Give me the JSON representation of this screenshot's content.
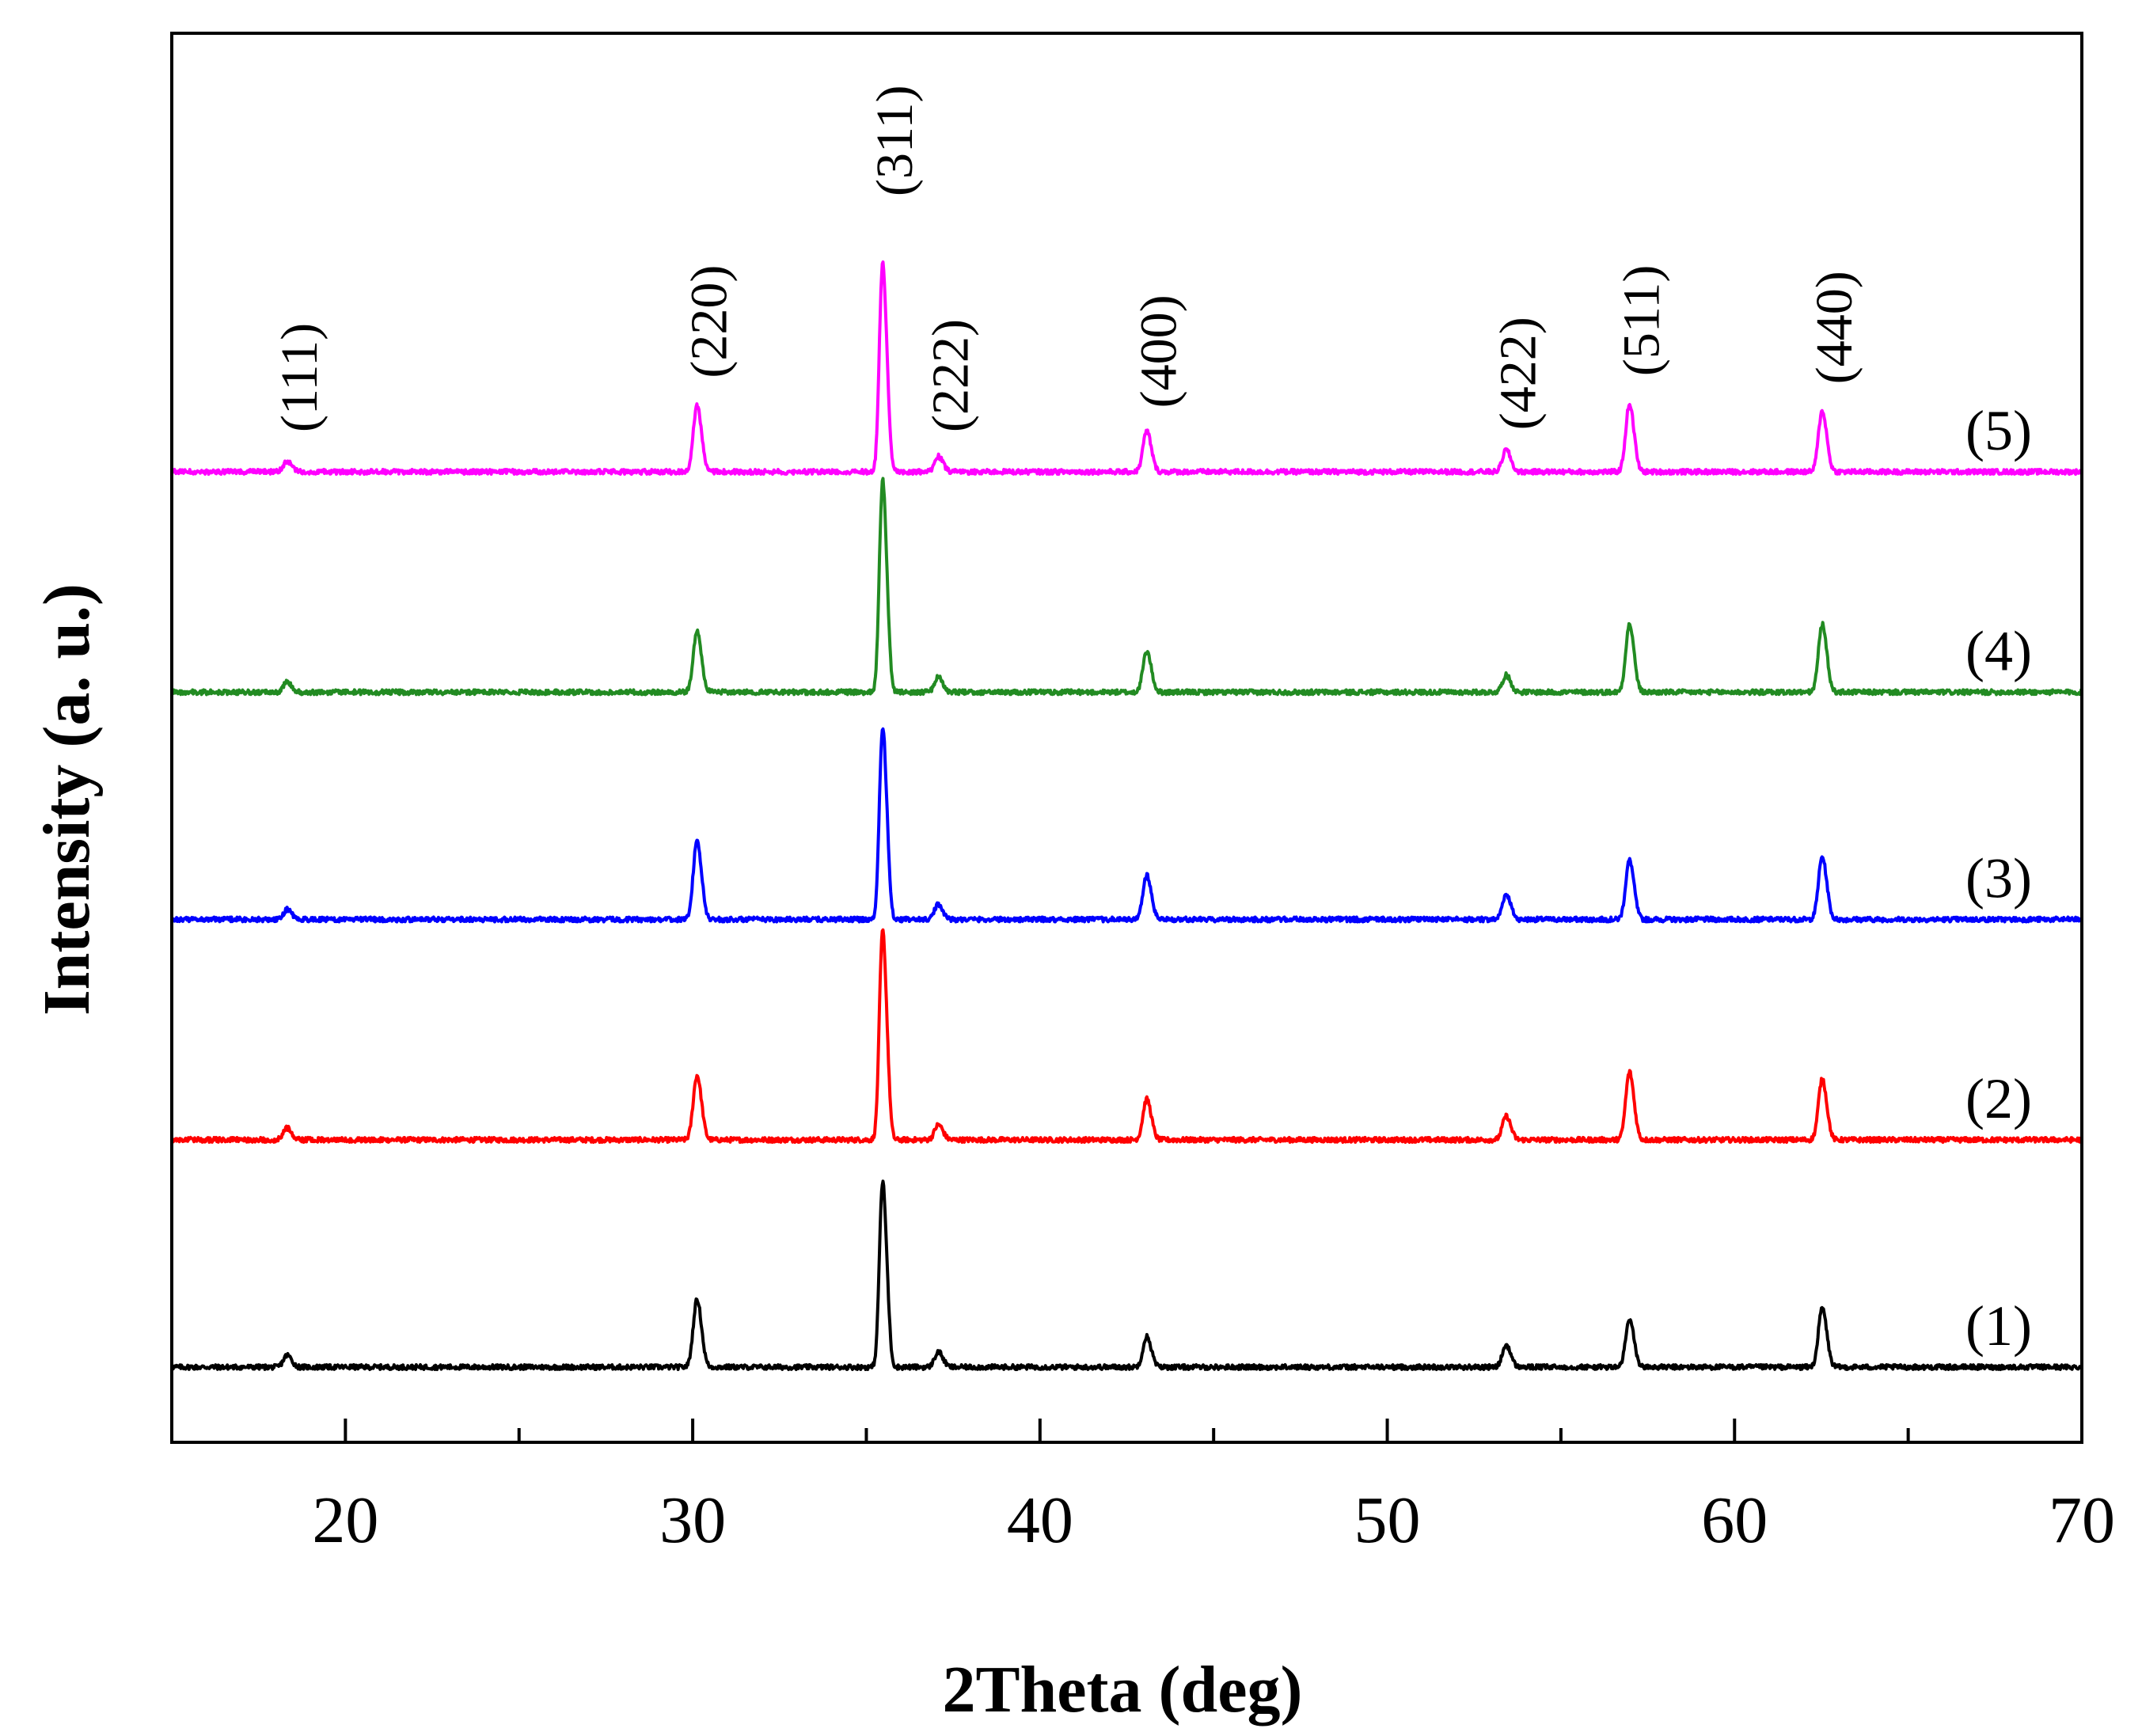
{
  "chart_data": {
    "type": "line",
    "title": "",
    "xlabel": "2Theta (deg)",
    "ylabel": "Intensity (a. u.)",
    "xlim": [
      15,
      70
    ],
    "xticks": [
      20,
      30,
      40,
      50,
      60,
      70
    ],
    "y_units": "arbitrary (stacked, offset series)",
    "grid": false,
    "peak_positions_deg": [
      18.3,
      30.1,
      35.45,
      37.05,
      43.05,
      53.4,
      56.95,
      62.5
    ],
    "peak_annotations": [
      {
        "label": "(111)",
        "x": 18.3
      },
      {
        "label": "(220)",
        "x": 30.1
      },
      {
        "label": "(311)",
        "x": 35.45
      },
      {
        "label": "(222)",
        "x": 37.05
      },
      {
        "label": "(400)",
        "x": 43.05
      },
      {
        "label": "(422)",
        "x": 53.4
      },
      {
        "label": "(511)",
        "x": 56.95
      },
      {
        "label": "(440)",
        "x": 62.5
      }
    ],
    "series": [
      {
        "name": "(1)",
        "color": "#000000",
        "baseline": 0.0,
        "peak_heights": [
          0.7,
          4.0,
          11.5,
          0.9,
          1.8,
          1.3,
          2.8,
          3.5
        ]
      },
      {
        "name": "(2)",
        "color": "#ff0000",
        "baseline": 16.5,
        "peak_heights": [
          0.7,
          3.8,
          13.0,
          0.9,
          2.4,
          1.4,
          4.0,
          3.6
        ]
      },
      {
        "name": "(3)",
        "color": "#0000ff",
        "baseline": 32.5,
        "peak_heights": [
          0.6,
          4.6,
          12.0,
          0.9,
          2.6,
          1.5,
          3.5,
          3.7
        ]
      },
      {
        "name": "(4)",
        "color": "#228b22",
        "baseline": 49.0,
        "peak_heights": [
          0.6,
          3.6,
          13.2,
          0.9,
          2.4,
          1.0,
          4.0,
          4.0
        ]
      },
      {
        "name": "(5)",
        "color": "#ff00ff",
        "baseline": 65.0,
        "peak_heights": [
          0.6,
          3.9,
          13.0,
          0.9,
          2.4,
          1.3,
          4.0,
          3.6
        ]
      }
    ]
  }
}
